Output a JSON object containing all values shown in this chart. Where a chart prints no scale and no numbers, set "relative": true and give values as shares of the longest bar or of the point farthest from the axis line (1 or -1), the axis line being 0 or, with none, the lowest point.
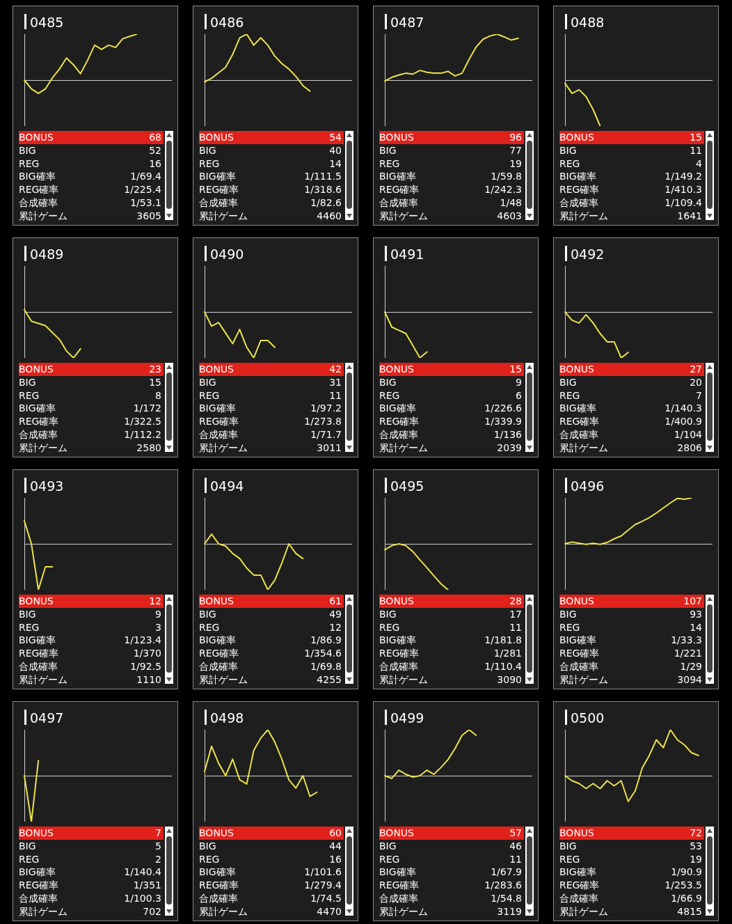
{
  "chart_data": [
    {
      "type": "line",
      "title": "0485",
      "relative": true,
      "color": "#ece24a",
      "categories": [
        null,
        null,
        null,
        null,
        null,
        null,
        null,
        null,
        null,
        null,
        null,
        null,
        null,
        null,
        null,
        null,
        null,
        null,
        null,
        null,
        null,
        null
      ],
      "values": [
        0,
        -0.19,
        -0.29,
        -0.19,
        0.05,
        0.24,
        0.48,
        0.33,
        0.14,
        0.43,
        0.76,
        0.67,
        0.76,
        0.71,
        0.9,
        0.95,
        1,
        null,
        null,
        null,
        null,
        null
      ]
    },
    {
      "type": "other",
      "annotations": [
        "BONUS",
        "68",
        "BIG",
        "52",
        "REG",
        "16",
        "BIG確率",
        "1/69.4",
        "REG確率",
        "1/225.4",
        "合成確率",
        "1/53.1",
        "累計ゲーム",
        "3605"
      ]
    },
    {
      "type": "line",
      "title": "0486",
      "relative": true,
      "color": "#ece24a",
      "categories": [
        null,
        null,
        null,
        null,
        null,
        null,
        null,
        null,
        null,
        null,
        null,
        null,
        null,
        null,
        null,
        null,
        null,
        null,
        null,
        null,
        null,
        null
      ],
      "values": [
        -0.04,
        0.04,
        0.16,
        0.28,
        0.56,
        0.92,
        1,
        0.76,
        0.92,
        0.76,
        0.52,
        0.36,
        0.24,
        0.08,
        -0.12,
        -0.24,
        null,
        null,
        null,
        null,
        null,
        null
      ]
    },
    {
      "type": "other",
      "annotations": [
        "BONUS",
        "54",
        "BIG",
        "40",
        "REG",
        "14",
        "BIG確率",
        "1/111.5",
        "REG確率",
        "1/318.6",
        "合成確率",
        "1/82.6",
        "累計ゲーム",
        "4460"
      ]
    },
    {
      "type": "line",
      "title": "0487",
      "relative": true,
      "color": "#ece24a",
      "categories": [
        null,
        null,
        null,
        null,
        null,
        null,
        null,
        null,
        null,
        null,
        null,
        null,
        null,
        null,
        null,
        null,
        null,
        null,
        null,
        null,
        null,
        null
      ],
      "values": [
        -0.02,
        0.06,
        0.11,
        0.15,
        0.13,
        0.21,
        0.17,
        0.15,
        0.15,
        0.19,
        0.09,
        0.15,
        0.45,
        0.72,
        0.89,
        0.96,
        1,
        0.94,
        0.87,
        0.91,
        null,
        null
      ]
    },
    {
      "type": "other",
      "annotations": [
        "BONUS",
        "96",
        "BIG",
        "77",
        "REG",
        "19",
        "BIG確率",
        "1/59.8",
        "REG確率",
        "1/242.3",
        "合成確率",
        "1/48",
        "累計ゲーム",
        "4603"
      ]
    },
    {
      "type": "line",
      "title": "0488",
      "relative": true,
      "color": "#ece24a",
      "categories": [
        null,
        null,
        null,
        null,
        null,
        null,
        null,
        null,
        null,
        null,
        null,
        null,
        null,
        null,
        null,
        null,
        null,
        null,
        null,
        null,
        null,
        null
      ],
      "values": [
        -0.07,
        -0.29,
        -0.21,
        -0.36,
        -0.64,
        -1,
        null,
        null,
        null,
        null,
        null,
        null,
        null,
        null,
        null,
        null,
        null,
        null,
        null,
        null,
        null,
        null
      ]
    },
    {
      "type": "other",
      "annotations": [
        "BONUS",
        "15",
        "BIG",
        "11",
        "REG",
        "4",
        "BIG確率",
        "1/149.2",
        "REG確率",
        "1/410.3",
        "合成確率",
        "1/109.4",
        "累計ゲーム",
        "1641"
      ]
    },
    {
      "type": "line",
      "title": "0489",
      "relative": true,
      "color": "#ece24a",
      "categories": [
        null,
        null,
        null,
        null,
        null,
        null,
        null,
        null,
        null,
        null,
        null,
        null,
        null,
        null,
        null,
        null,
        null,
        null,
        null,
        null,
        null,
        null
      ],
      "values": [
        0.05,
        -0.2,
        -0.25,
        -0.3,
        -0.45,
        -0.6,
        -0.85,
        -1,
        -0.8,
        null,
        null,
        null,
        null,
        null,
        null,
        null,
        null,
        null,
        null,
        null,
        null,
        null
      ]
    },
    {
      "type": "other",
      "annotations": [
        "BONUS",
        "23",
        "BIG",
        "15",
        "REG",
        "8",
        "BIG確率",
        "1/172",
        "REG確率",
        "1/322.5",
        "合成確率",
        "1/112.2",
        "累計ゲーム",
        "2580"
      ]
    },
    {
      "type": "line",
      "title": "0490",
      "relative": true,
      "color": "#ece24a",
      "categories": [
        null,
        null,
        null,
        null,
        null,
        null,
        null,
        null,
        null,
        null,
        null,
        null,
        null,
        null,
        null,
        null,
        null,
        null,
        null,
        null,
        null,
        null
      ],
      "values": [
        0,
        -0.31,
        -0.23,
        -0.46,
        -0.69,
        -0.38,
        -0.77,
        -1,
        -0.62,
        -0.62,
        -0.77,
        null,
        null,
        null,
        null,
        null,
        null,
        null,
        null,
        null,
        null,
        null
      ]
    },
    {
      "type": "other",
      "annotations": [
        "BONUS",
        "42",
        "BIG",
        "31",
        "REG",
        "11",
        "BIG確率",
        "1/97.2",
        "REG確率",
        "1/273.8",
        "合成確率",
        "1/71.7",
        "累計ゲーム",
        "3011"
      ]
    },
    {
      "type": "line",
      "title": "0491",
      "relative": true,
      "color": "#ece24a",
      "categories": [
        null,
        null,
        null,
        null,
        null,
        null,
        null,
        null,
        null,
        null,
        null,
        null,
        null,
        null,
        null,
        null,
        null,
        null,
        null,
        null,
        null,
        null
      ],
      "values": [
        0,
        -0.33,
        -0.4,
        -0.47,
        -0.73,
        -1,
        -0.87,
        null,
        null,
        null,
        null,
        null,
        null,
        null,
        null,
        null,
        null,
        null,
        null,
        null,
        null,
        null
      ]
    },
    {
      "type": "other",
      "annotations": [
        "BONUS",
        "15",
        "BIG",
        "9",
        "REG",
        "6",
        "BIG確率",
        "1/226.6",
        "REG確率",
        "1/339.9",
        "合成確率",
        "1/136",
        "累計ゲーム",
        "2039"
      ]
    },
    {
      "type": "line",
      "title": "0492",
      "relative": true,
      "color": "#ece24a",
      "categories": [
        null,
        null,
        null,
        null,
        null,
        null,
        null,
        null,
        null,
        null,
        null,
        null,
        null,
        null,
        null,
        null,
        null,
        null,
        null,
        null,
        null,
        null
      ],
      "values": [
        0,
        -0.18,
        -0.24,
        -0.06,
        -0.24,
        -0.47,
        -0.65,
        -0.65,
        -1,
        -0.88,
        null,
        null,
        null,
        null,
        null,
        null,
        null,
        null,
        null,
        null,
        null,
        null
      ]
    },
    {
      "type": "other",
      "annotations": [
        "BONUS",
        "27",
        "BIG",
        "20",
        "REG",
        "7",
        "BIG確率",
        "1/140.3",
        "REG確率",
        "1/400.9",
        "合成確率",
        "1/104",
        "累計ゲーム",
        "2806"
      ]
    },
    {
      "type": "line",
      "title": "0493",
      "relative": true,
      "color": "#ece24a",
      "categories": [
        null,
        null,
        null,
        null,
        null,
        null,
        null,
        null,
        null,
        null,
        null,
        null,
        null,
        null,
        null,
        null,
        null,
        null,
        null,
        null,
        null,
        null
      ],
      "values": [
        0.5,
        0,
        -1,
        -0.5,
        -0.5,
        null,
        null,
        null,
        null,
        null,
        null,
        null,
        null,
        null,
        null,
        null,
        null,
        null,
        null,
        null,
        null,
        null
      ]
    },
    {
      "type": "other",
      "annotations": [
        "BONUS",
        "12",
        "BIG",
        "9",
        "REG",
        "3",
        "BIG確率",
        "1/123.4",
        "REG確率",
        "1/370",
        "合成確率",
        "1/92.5",
        "累計ゲーム",
        "1110"
      ]
    },
    {
      "type": "line",
      "title": "0494",
      "relative": true,
      "color": "#ece24a",
      "categories": [
        null,
        null,
        null,
        null,
        null,
        null,
        null,
        null,
        null,
        null,
        null,
        null,
        null,
        null,
        null,
        null,
        null,
        null,
        null,
        null,
        null,
        null
      ],
      "values": [
        0,
        0.21,
        0,
        -0.05,
        -0.21,
        -0.32,
        -0.53,
        -0.68,
        -0.68,
        -1,
        -0.79,
        -0.42,
        0,
        -0.21,
        -0.32,
        null,
        null,
        null,
        null,
        null,
        null,
        null
      ]
    },
    {
      "type": "other",
      "annotations": [
        "BONUS",
        "61",
        "BIG",
        "49",
        "REG",
        "12",
        "BIG確率",
        "1/86.9",
        "REG確率",
        "1/354.6",
        "合成確率",
        "1/69.8",
        "累計ゲーム",
        "4255"
      ]
    },
    {
      "type": "line",
      "title": "0495",
      "relative": true,
      "color": "#ece24a",
      "categories": [
        null,
        null,
        null,
        null,
        null,
        null,
        null,
        null,
        null,
        null,
        null,
        null,
        null,
        null,
        null,
        null,
        null,
        null,
        null,
        null,
        null,
        null
      ],
      "values": [
        -0.13,
        -0.04,
        0,
        -0.04,
        -0.17,
        -0.35,
        -0.52,
        -0.7,
        -0.87,
        -1,
        null,
        null,
        null,
        null,
        null,
        null,
        null,
        null,
        null,
        null,
        null,
        null
      ]
    },
    {
      "type": "other",
      "annotations": [
        "BONUS",
        "28",
        "BIG",
        "17",
        "REG",
        "11",
        "BIG確率",
        "1/181.8",
        "REG確率",
        "1/281",
        "合成確率",
        "1/110.4",
        "累計ゲーム",
        "3090"
      ]
    },
    {
      "type": "line",
      "title": "0496",
      "relative": true,
      "color": "#ece24a",
      "categories": [
        null,
        null,
        null,
        null,
        null,
        null,
        null,
        null,
        null,
        null,
        null,
        null,
        null,
        null,
        null,
        null,
        null,
        null,
        null,
        null,
        null,
        null
      ],
      "values": [
        0,
        0.04,
        0.01,
        -0.01,
        0.01,
        -0.01,
        0.03,
        0.11,
        0.17,
        0.3,
        0.42,
        0.49,
        0.57,
        0.67,
        0.78,
        0.89,
        0.99,
        0.97,
        1,
        null,
        null,
        null
      ]
    },
    {
      "type": "other",
      "annotations": [
        "BONUS",
        "107",
        "BIG",
        "93",
        "REG",
        "14",
        "BIG確率",
        "1/33.3",
        "REG確率",
        "1/221",
        "合成確率",
        "1/29",
        "累計ゲーム",
        "3094"
      ]
    },
    {
      "type": "line",
      "title": "0497",
      "relative": true,
      "color": "#ece24a",
      "categories": [
        null,
        null,
        null,
        null,
        null,
        null,
        null,
        null,
        null,
        null,
        null,
        null,
        null,
        null,
        null,
        null,
        null,
        null,
        null,
        null,
        null,
        null
      ],
      "values": [
        0,
        -1,
        0.33,
        null,
        null,
        null,
        null,
        null,
        null,
        null,
        null,
        null,
        null,
        null,
        null,
        null,
        null,
        null,
        null,
        null,
        null,
        null
      ]
    },
    {
      "type": "other",
      "annotations": [
        "BONUS",
        "7",
        "BIG",
        "5",
        "REG",
        "2",
        "BIG確率",
        "1/140.4",
        "REG確率",
        "1/351",
        "合成確率",
        "1/100.3",
        "累計ゲーム",
        "702"
      ]
    },
    {
      "type": "line",
      "title": "0498",
      "relative": true,
      "color": "#ece24a",
      "categories": [
        null,
        null,
        null,
        null,
        null,
        null,
        null,
        null,
        null,
        null,
        null,
        null,
        null,
        null,
        null,
        null,
        null,
        null,
        null,
        null,
        null,
        null
      ],
      "values": [
        0.09,
        0.64,
        0.27,
        0,
        0.36,
        -0.09,
        -0.18,
        0.55,
        0.82,
        1,
        0.73,
        0.36,
        -0.09,
        -0.27,
        0,
        -0.45,
        -0.36,
        null,
        null,
        null,
        null,
        null
      ]
    },
    {
      "type": "other",
      "annotations": [
        "BONUS",
        "60",
        "BIG",
        "44",
        "REG",
        "16",
        "BIG確率",
        "1/101.6",
        "REG確率",
        "1/279.4",
        "合成確率",
        "1/74.5",
        "累計ゲーム",
        "4470"
      ]
    },
    {
      "type": "line",
      "title": "0499",
      "relative": true,
      "color": "#ece24a",
      "categories": [
        null,
        null,
        null,
        null,
        null,
        null,
        null,
        null,
        null,
        null,
        null,
        null,
        null,
        null,
        null,
        null,
        null,
        null,
        null,
        null,
        null,
        null
      ],
      "values": [
        0,
        -0.06,
        0.12,
        0.03,
        -0.03,
        0,
        0.12,
        0.03,
        0.18,
        0.35,
        0.59,
        0.88,
        1,
        0.88,
        null,
        null,
        null,
        null,
        null,
        null,
        null,
        null
      ]
    },
    {
      "type": "other",
      "annotations": [
        "BONUS",
        "57",
        "BIG",
        "46",
        "REG",
        "11",
        "BIG確率",
        "1/67.9",
        "REG確率",
        "1/283.6",
        "合成確率",
        "1/54.8",
        "累計ゲーム",
        "3119"
      ]
    },
    {
      "type": "line",
      "title": "0500",
      "relative": true,
      "color": "#ece24a",
      "categories": [
        null,
        null,
        null,
        null,
        null,
        null,
        null,
        null,
        null,
        null,
        null,
        null,
        null,
        null,
        null,
        null,
        null,
        null,
        null,
        null,
        null,
        null
      ],
      "values": [
        0,
        -0.11,
        -0.17,
        -0.28,
        -0.17,
        -0.28,
        -0.11,
        -0.22,
        -0.11,
        -0.56,
        -0.33,
        0.17,
        0.44,
        0.78,
        0.61,
        1,
        0.78,
        0.67,
        0.5,
        0.44,
        null,
        null
      ]
    },
    {
      "type": "other",
      "annotations": [
        "BONUS",
        "72",
        "BIG",
        "53",
        "REG",
        "19",
        "BIG確率",
        "1/90.9",
        "REG確率",
        "1/253.5",
        "合成確率",
        "1/66.9",
        "累計ゲーム",
        "4815"
      ]
    }
  ]
}
